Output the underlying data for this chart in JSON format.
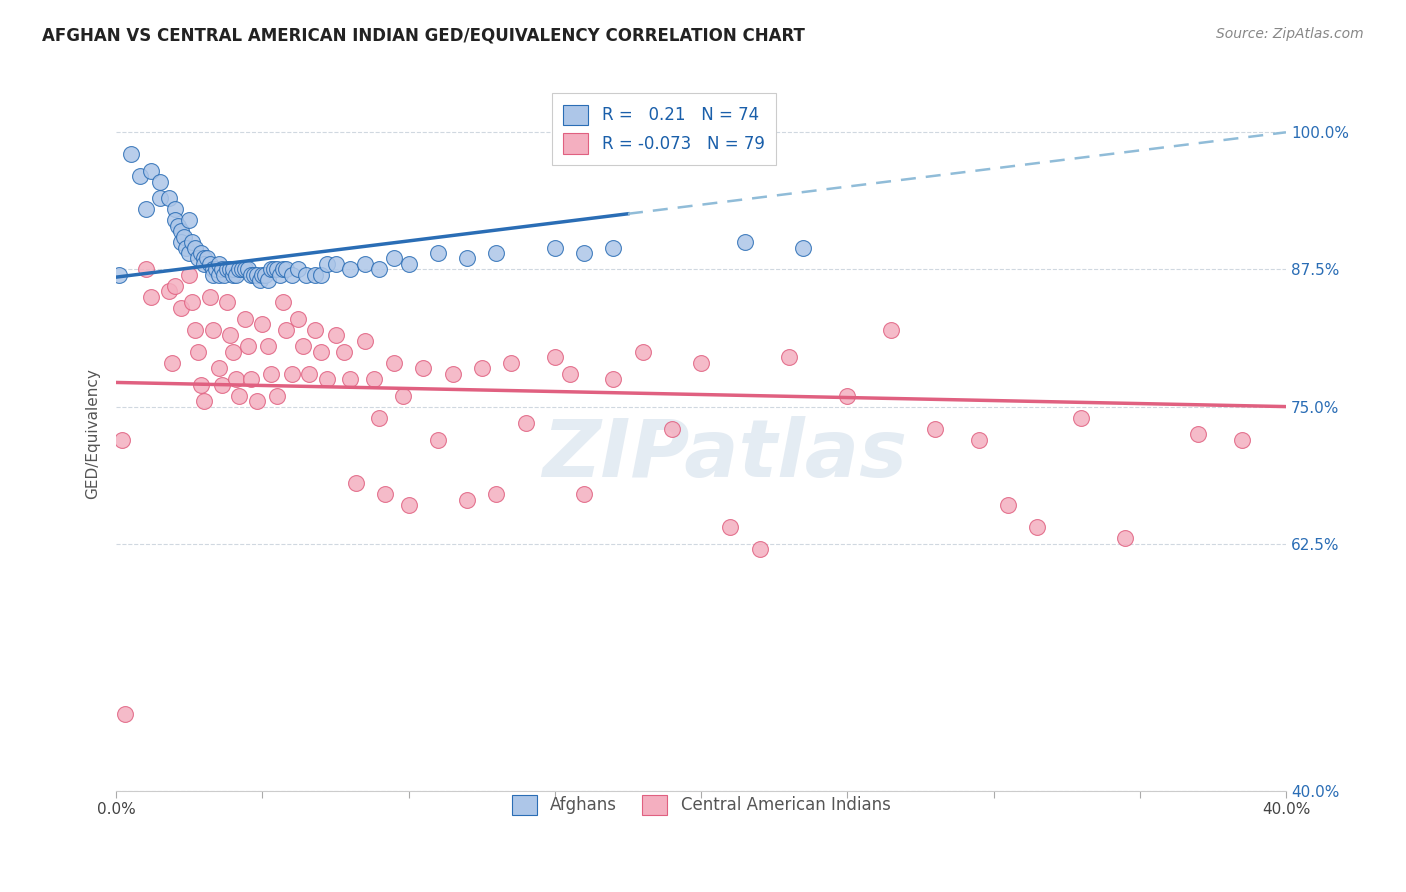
{
  "title": "AFGHAN VS CENTRAL AMERICAN INDIAN GED/EQUIVALENCY CORRELATION CHART",
  "source": "Source: ZipAtlas.com",
  "ylabel": "GED/Equivalency",
  "xlim": [
    0.0,
    0.4
  ],
  "ylim": [
    0.4,
    1.05
  ],
  "ytick_positions": [
    0.4,
    0.625,
    0.75,
    0.875,
    1.0
  ],
  "ytick_labels_right": [
    "40.0%",
    "62.5%",
    "75.0%",
    "87.5%",
    "100.0%"
  ],
  "blue_R": 0.21,
  "blue_N": 74,
  "pink_R": -0.073,
  "pink_N": 79,
  "blue_color": "#adc6e8",
  "pink_color": "#f4afc0",
  "blue_line_color": "#2a6db5",
  "pink_line_color": "#e06080",
  "blue_dash_color": "#90bcd8",
  "watermark_text": "ZIPatlas",
  "title_fontsize": 12,
  "legend_fontsize": 12,
  "blue_line_x_start": 0.0,
  "blue_line_x_solid_end": 0.175,
  "blue_line_x_end": 0.4,
  "blue_line_y_at_0": 0.868,
  "blue_line_slope": 0.33,
  "pink_line_x_start": 0.0,
  "pink_line_x_end": 0.4,
  "pink_line_y_at_0": 0.772,
  "pink_line_slope": -0.055,
  "blue_scatter_x": [
    0.001,
    0.005,
    0.008,
    0.01,
    0.012,
    0.015,
    0.015,
    0.018,
    0.02,
    0.02,
    0.021,
    0.022,
    0.022,
    0.023,
    0.024,
    0.025,
    0.025,
    0.026,
    0.027,
    0.028,
    0.029,
    0.03,
    0.03,
    0.031,
    0.032,
    0.033,
    0.033,
    0.034,
    0.035,
    0.035,
    0.036,
    0.037,
    0.038,
    0.039,
    0.04,
    0.04,
    0.041,
    0.042,
    0.043,
    0.044,
    0.045,
    0.046,
    0.047,
    0.048,
    0.049,
    0.05,
    0.051,
    0.052,
    0.053,
    0.054,
    0.055,
    0.056,
    0.057,
    0.058,
    0.06,
    0.062,
    0.065,
    0.068,
    0.07,
    0.072,
    0.075,
    0.08,
    0.085,
    0.09,
    0.095,
    0.1,
    0.11,
    0.12,
    0.13,
    0.15,
    0.16,
    0.17,
    0.215,
    0.235
  ],
  "blue_scatter_y": [
    0.87,
    0.98,
    0.96,
    0.93,
    0.965,
    0.955,
    0.94,
    0.94,
    0.93,
    0.92,
    0.915,
    0.91,
    0.9,
    0.905,
    0.895,
    0.92,
    0.89,
    0.9,
    0.895,
    0.885,
    0.89,
    0.885,
    0.88,
    0.885,
    0.88,
    0.875,
    0.87,
    0.875,
    0.87,
    0.88,
    0.875,
    0.87,
    0.875,
    0.875,
    0.87,
    0.875,
    0.87,
    0.875,
    0.875,
    0.875,
    0.875,
    0.87,
    0.87,
    0.87,
    0.865,
    0.87,
    0.87,
    0.865,
    0.875,
    0.875,
    0.875,
    0.87,
    0.875,
    0.875,
    0.87,
    0.875,
    0.87,
    0.87,
    0.87,
    0.88,
    0.88,
    0.875,
    0.88,
    0.875,
    0.885,
    0.88,
    0.89,
    0.885,
    0.89,
    0.895,
    0.89,
    0.895,
    0.9,
    0.895
  ],
  "pink_scatter_x": [
    0.002,
    0.003,
    0.01,
    0.012,
    0.018,
    0.019,
    0.02,
    0.022,
    0.025,
    0.026,
    0.027,
    0.028,
    0.029,
    0.03,
    0.032,
    0.033,
    0.035,
    0.036,
    0.038,
    0.039,
    0.04,
    0.041,
    0.042,
    0.044,
    0.045,
    0.046,
    0.048,
    0.05,
    0.052,
    0.053,
    0.055,
    0.057,
    0.058,
    0.06,
    0.062,
    0.064,
    0.066,
    0.068,
    0.07,
    0.072,
    0.075,
    0.078,
    0.08,
    0.082,
    0.085,
    0.088,
    0.09,
    0.092,
    0.095,
    0.098,
    0.1,
    0.105,
    0.11,
    0.115,
    0.12,
    0.125,
    0.13,
    0.135,
    0.14,
    0.15,
    0.155,
    0.16,
    0.17,
    0.18,
    0.19,
    0.2,
    0.21,
    0.22,
    0.23,
    0.25,
    0.265,
    0.28,
    0.295,
    0.305,
    0.315,
    0.33,
    0.345,
    0.37,
    0.385
  ],
  "pink_scatter_y": [
    0.72,
    0.47,
    0.875,
    0.85,
    0.855,
    0.79,
    0.86,
    0.84,
    0.87,
    0.845,
    0.82,
    0.8,
    0.77,
    0.755,
    0.85,
    0.82,
    0.785,
    0.77,
    0.845,
    0.815,
    0.8,
    0.775,
    0.76,
    0.83,
    0.805,
    0.775,
    0.755,
    0.825,
    0.805,
    0.78,
    0.76,
    0.845,
    0.82,
    0.78,
    0.83,
    0.805,
    0.78,
    0.82,
    0.8,
    0.775,
    0.815,
    0.8,
    0.775,
    0.68,
    0.81,
    0.775,
    0.74,
    0.67,
    0.79,
    0.76,
    0.66,
    0.785,
    0.72,
    0.78,
    0.665,
    0.785,
    0.67,
    0.79,
    0.735,
    0.795,
    0.78,
    0.67,
    0.775,
    0.8,
    0.73,
    0.79,
    0.64,
    0.62,
    0.795,
    0.76,
    0.82,
    0.73,
    0.72,
    0.66,
    0.64,
    0.74,
    0.63,
    0.725,
    0.72
  ]
}
